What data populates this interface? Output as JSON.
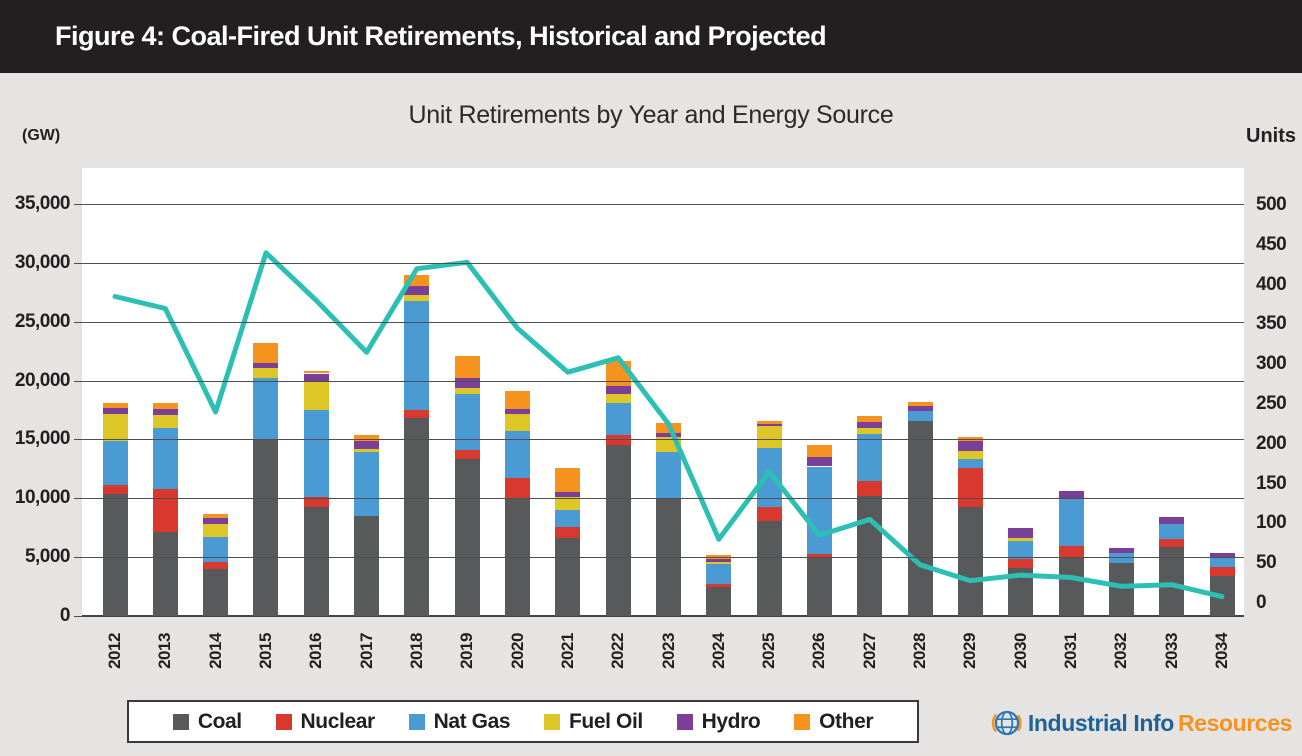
{
  "header": {
    "title": "Figure 4: Coal-Fired Unit Retirements, Historical and Projected"
  },
  "chart_data": {
    "type": "combo: stacked-bar (GW) + line (Units)",
    "title": "Unit Retirements by Year and Energy Source",
    "grid": true,
    "legend_position": "bottom",
    "left_axis": {
      "label": "(GW)",
      "min": 0,
      "max": 35000,
      "step": 5000,
      "ticks": [
        0,
        5000,
        10000,
        15000,
        20000,
        25000,
        30000,
        35000
      ],
      "tick_labels": [
        "0",
        "5,000",
        "10,000",
        "15,000",
        "20,000",
        "25,000",
        "30,000",
        "35,000"
      ]
    },
    "right_axis": {
      "label": "Units",
      "min": 0,
      "max": 500,
      "step": 50,
      "ticks": [
        0,
        50,
        100,
        150,
        200,
        250,
        300,
        350,
        400,
        450,
        500
      ],
      "tick_labels": [
        "0",
        "50",
        "100",
        "150",
        "200",
        "250",
        "300",
        "350",
        "400",
        "450",
        "500"
      ]
    },
    "categories": [
      "2012",
      "2013",
      "2014",
      "2015",
      "2016",
      "2017",
      "2018",
      "2019",
      "2020",
      "2021",
      "2022",
      "2023",
      "2024",
      "2025",
      "2026",
      "2027",
      "2028",
      "2029",
      "2030",
      "2031",
      "2032",
      "2033",
      "2034"
    ],
    "series": [
      {
        "name": "Coal",
        "color": "#58595b",
        "values": [
          10400,
          7100,
          4000,
          15000,
          9300,
          8500,
          16800,
          13300,
          10000,
          6600,
          14500,
          9900,
          2500,
          8100,
          5000,
          10200,
          16600,
          9300,
          4100,
          4900,
          4500,
          5900,
          3400
        ]
      },
      {
        "name": "Nuclear",
        "color": "#d8382e",
        "values": [
          700,
          3700,
          600,
          0,
          800,
          0,
          700,
          800,
          1700,
          1000,
          900,
          0,
          250,
          1200,
          300,
          1300,
          0,
          3250,
          700,
          1050,
          0,
          600,
          750
        ]
      },
      {
        "name": "Nat Gas",
        "color": "#4a9ad4",
        "values": [
          3800,
          5200,
          2100,
          5200,
          7400,
          5400,
          9300,
          4800,
          4000,
          1400,
          2700,
          4000,
          1650,
          5000,
          7400,
          4000,
          800,
          800,
          1550,
          4050,
          850,
          1300,
          800
        ]
      },
      {
        "name": "Fuel Oil",
        "color": "#ddc626",
        "values": [
          2300,
          1100,
          1100,
          900,
          2400,
          300,
          500,
          500,
          1500,
          1100,
          800,
          1300,
          150,
          1800,
          0,
          500,
          0,
          650,
          300,
          0,
          0,
          0,
          0
        ]
      },
      {
        "name": "Hydro",
        "color": "#7a3f98",
        "values": [
          500,
          500,
          500,
          400,
          700,
          650,
          700,
          800,
          400,
          400,
          600,
          350,
          250,
          250,
          800,
          500,
          450,
          900,
          850,
          650,
          400,
          650,
          380
        ]
      },
      {
        "name": "Other",
        "color": "#f6921e",
        "values": [
          400,
          500,
          400,
          1700,
          200,
          550,
          1000,
          1900,
          1500,
          2100,
          2200,
          850,
          350,
          200,
          1050,
          500,
          350,
          300,
          0,
          0,
          0,
          0,
          0
        ]
      }
    ],
    "line_series": {
      "name": "Units",
      "color": "#2cc0b4",
      "values": [
        385,
        370,
        240,
        440,
        380,
        315,
        420,
        428,
        345,
        290,
        308,
        225,
        80,
        165,
        85,
        105,
        48,
        28,
        35,
        32,
        21,
        23,
        8
      ]
    }
  },
  "branding": {
    "name_primary": "Industrial Info",
    "name_secondary": "Resources",
    "primary_color": "#1d6398",
    "secondary_color": "#f6921e"
  }
}
